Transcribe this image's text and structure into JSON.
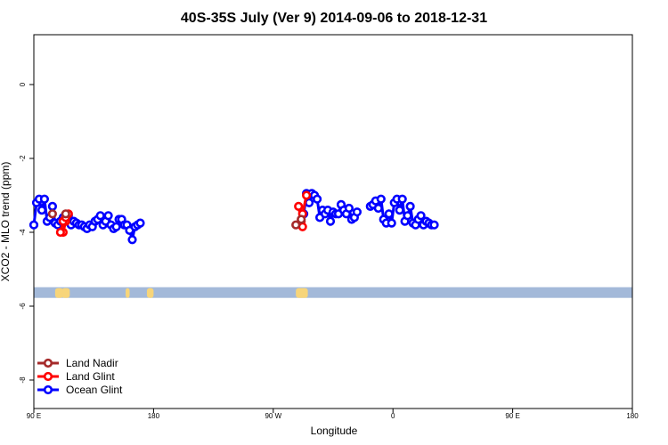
{
  "chart_data": {
    "type": "line",
    "title": "40S-35S July (Ver 9)   2014-09-06 to 2018-12-31",
    "xlabel": "Longitude",
    "ylabel": "XCO2 - MLO trend (ppm)",
    "x_ticks": [
      "90 E",
      "180",
      "90 W",
      "0",
      "90 E",
      "180"
    ],
    "y_ticks": [
      "0",
      "-2",
      "-4",
      "-6",
      "-8"
    ],
    "ylim": [
      -8.9,
      1.4
    ],
    "grid": false,
    "legend_position": "bottom-left",
    "land_band": {
      "y_value": -5.8,
      "ocean_color": "#a3b9d9",
      "land_color": "#f7d57a"
    },
    "series": [
      {
        "name": "Land Nadir",
        "color": "#a52a2a",
        "segments": [
          [
            [
              114,
              -3.5
            ]
          ],
          [
            [
              -73,
              -3.8
            ],
            [
              -69,
              -3.65
            ]
          ],
          [
            [
              104,
              -3.5
            ]
          ]
        ]
      },
      {
        "name": "Land Glint",
        "color": "#ff0000",
        "segments": [
          [
            [
              112,
              -4.0
            ],
            [
              114,
              -3.7
            ],
            [
              116,
              -3.5
            ]
          ],
          [
            [
              -71,
              -3.3
            ],
            [
              -69,
              -3.7
            ],
            [
              -68,
              -3.85
            ],
            [
              -68,
              -3.5
            ],
            [
              -65,
              -3.0
            ]
          ],
          [
            [
              110,
              -4.0
            ],
            [
              112,
              -3.7
            ],
            [
              114,
              -3.6
            ]
          ]
        ]
      },
      {
        "name": "Ocean Glint",
        "color": "#0000ff",
        "segments": [
          [
            [
              90,
              -3.8
            ],
            [
              92,
              -3.2
            ],
            [
              94,
              -3.1
            ],
            [
              96,
              -3.4
            ],
            [
              98,
              -3.1
            ],
            [
              100,
              -3.7
            ],
            [
              102,
              -3.6
            ],
            [
              104,
              -3.3
            ],
            [
              106,
              -3.75
            ],
            [
              108,
              -3.8
            ],
            [
              110,
              -3.7
            ],
            [
              112,
              -3.6
            ],
            [
              114,
              -3.55
            ],
            [
              116,
              -3.55
            ],
            [
              118,
              -3.8
            ],
            [
              120,
              -3.7
            ],
            [
              122,
              -3.75
            ],
            [
              124,
              -3.8
            ],
            [
              126,
              -3.8
            ],
            [
              128,
              -3.85
            ],
            [
              130,
              -3.9
            ],
            [
              132,
              -3.8
            ],
            [
              134,
              -3.85
            ],
            [
              136,
              -3.7
            ],
            [
              138,
              -3.65
            ],
            [
              140,
              -3.55
            ],
            [
              142,
              -3.8
            ],
            [
              144,
              -3.7
            ],
            [
              146,
              -3.55
            ],
            [
              148,
              -3.8
            ],
            [
              150,
              -3.9
            ],
            [
              152,
              -3.85
            ],
            [
              154,
              -3.65
            ],
            [
              156,
              -3.65
            ],
            [
              158,
              -3.8
            ],
            [
              160,
              -3.8
            ],
            [
              162,
              -3.95
            ],
            [
              164,
              -4.2
            ],
            [
              166,
              -3.85
            ],
            [
              168,
              -3.8
            ],
            [
              170,
              -3.75
            ]
          ],
          [
            [
              -67,
              -3.5
            ],
            [
              -65,
              -2.95
            ],
            [
              -63,
              -3.2
            ],
            [
              -61,
              -2.95
            ],
            [
              -59,
              -3.0
            ],
            [
              -57,
              -3.1
            ],
            [
              -55,
              -3.6
            ],
            [
              -53,
              -3.4
            ],
            [
              -51,
              -3.5
            ],
            [
              -49,
              -3.4
            ],
            [
              -47,
              -3.7
            ],
            [
              -45,
              -3.45
            ],
            [
              -43,
              -3.5
            ],
            [
              -41,
              -3.5
            ],
            [
              -39,
              -3.25
            ],
            [
              -37,
              -3.4
            ],
            [
              -35,
              -3.5
            ],
            [
              -33,
              -3.35
            ],
            [
              -31,
              -3.65
            ],
            [
              -29,
              -3.6
            ],
            [
              -27,
              -3.45
            ]
          ],
          [
            [
              -17,
              -3.3
            ],
            [
              -15,
              -3.25
            ],
            [
              -13,
              -3.15
            ],
            [
              -11,
              -3.35
            ],
            [
              -9,
              -3.1
            ],
            [
              -7,
              -3.65
            ],
            [
              -5,
              -3.75
            ],
            [
              -3,
              -3.5
            ],
            [
              -1,
              -3.75
            ],
            [
              1,
              -3.2
            ],
            [
              3,
              -3.1
            ],
            [
              5,
              -3.4
            ],
            [
              7,
              -3.1
            ],
            [
              9,
              -3.7
            ],
            [
              11,
              -3.55
            ],
            [
              13,
              -3.3
            ],
            [
              15,
              -3.75
            ],
            [
              17,
              -3.8
            ],
            [
              19,
              -3.65
            ],
            [
              21,
              -3.55
            ],
            [
              23,
              -3.8
            ],
            [
              25,
              -3.7
            ],
            [
              27,
              -3.75
            ],
            [
              29,
              -3.8
            ],
            [
              31,
              -3.8
            ]
          ]
        ]
      }
    ]
  }
}
